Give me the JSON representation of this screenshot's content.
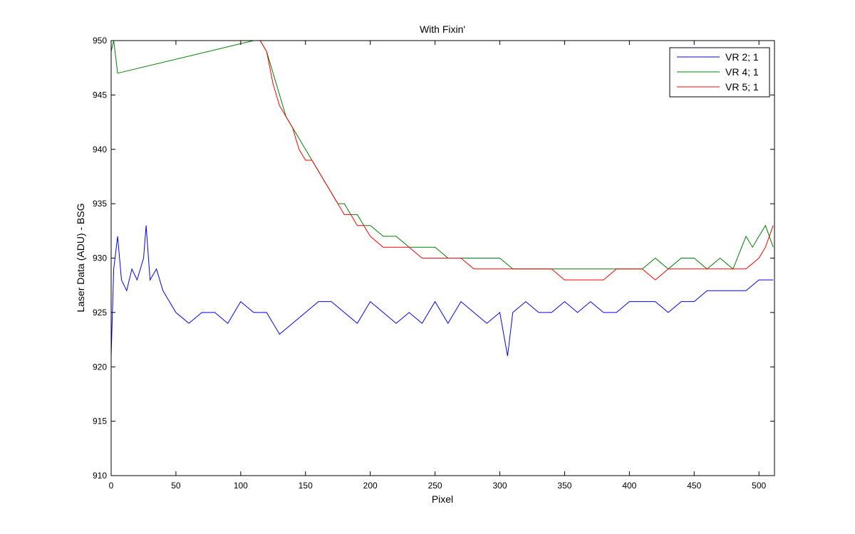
{
  "chart_data": {
    "type": "line",
    "title": "With Fixin'",
    "xlabel": "Pixel",
    "ylabel": "Laser Data (ADU) - BSG",
    "xlim": [
      0,
      512
    ],
    "ylim": [
      910,
      950
    ],
    "xticks": [
      0,
      50,
      100,
      150,
      200,
      250,
      300,
      350,
      400,
      450,
      500
    ],
    "yticks": [
      910,
      915,
      920,
      925,
      930,
      935,
      940,
      945,
      950
    ],
    "grid": false,
    "legend_position": "top-right",
    "series": [
      {
        "name": "VR  2; 1",
        "color": "#0000ff",
        "x": [
          0,
          2,
          5,
          8,
          12,
          16,
          20,
          25,
          27,
          30,
          35,
          40,
          45,
          50,
          60,
          70,
          80,
          90,
          100,
          110,
          120,
          130,
          140,
          150,
          160,
          170,
          180,
          190,
          200,
          210,
          220,
          230,
          240,
          250,
          260,
          270,
          280,
          290,
          300,
          306,
          310,
          320,
          330,
          340,
          350,
          360,
          370,
          380,
          390,
          400,
          410,
          420,
          430,
          440,
          450,
          460,
          470,
          480,
          490,
          500,
          505,
          511
        ],
        "y": [
          921,
          929,
          932,
          928,
          927,
          929,
          928,
          930,
          933,
          928,
          929,
          927,
          926,
          925,
          924,
          925,
          925,
          924,
          926,
          925,
          925,
          923,
          924,
          925,
          926,
          926,
          925,
          924,
          926,
          925,
          924,
          925,
          924,
          926,
          924,
          926,
          925,
          924,
          925,
          921,
          925,
          926,
          925,
          925,
          926,
          925,
          926,
          925,
          925,
          926,
          926,
          926,
          925,
          926,
          926,
          927,
          927,
          927,
          927,
          928,
          928,
          928
        ]
      },
      {
        "name": "VR  4; 1",
        "color": "#008000",
        "x": [
          0,
          2,
          5,
          110,
          115,
          120,
          125,
          130,
          135,
          140,
          145,
          150,
          155,
          160,
          165,
          170,
          175,
          180,
          185,
          190,
          195,
          200,
          210,
          220,
          230,
          240,
          250,
          260,
          270,
          280,
          290,
          300,
          310,
          320,
          330,
          340,
          350,
          360,
          370,
          380,
          390,
          400,
          410,
          420,
          430,
          440,
          450,
          460,
          470,
          480,
          490,
          495,
          500,
          505,
          511
        ],
        "y": [
          949,
          950,
          947,
          950,
          950,
          949,
          947,
          945,
          943,
          942,
          941,
          940,
          939,
          938,
          937,
          936,
          935,
          935,
          934,
          934,
          933,
          933,
          932,
          932,
          931,
          931,
          931,
          930,
          930,
          930,
          930,
          930,
          929,
          929,
          929,
          929,
          929,
          929,
          929,
          929,
          929,
          929,
          929,
          930,
          929,
          930,
          930,
          929,
          930,
          929,
          932,
          931,
          932,
          933,
          931
        ]
      },
      {
        "name": "VR  5; 1",
        "color": "#ff0000",
        "x": [
          115,
          120,
          125,
          130,
          135,
          140,
          145,
          150,
          155,
          160,
          165,
          170,
          175,
          180,
          185,
          190,
          195,
          200,
          210,
          220,
          230,
          240,
          250,
          260,
          270,
          280,
          290,
          300,
          310,
          320,
          330,
          340,
          350,
          360,
          370,
          380,
          390,
          400,
          410,
          420,
          430,
          440,
          450,
          460,
          470,
          480,
          490,
          500,
          505,
          511
        ],
        "y": [
          950,
          949,
          946,
          944,
          943,
          942,
          940,
          939,
          939,
          938,
          937,
          936,
          935,
          934,
          934,
          933,
          933,
          932,
          931,
          931,
          931,
          930,
          930,
          930,
          930,
          929,
          929,
          929,
          929,
          929,
          929,
          929,
          928,
          928,
          928,
          928,
          929,
          929,
          929,
          928,
          929,
          929,
          929,
          929,
          929,
          929,
          929,
          930,
          931,
          933
        ]
      }
    ]
  }
}
